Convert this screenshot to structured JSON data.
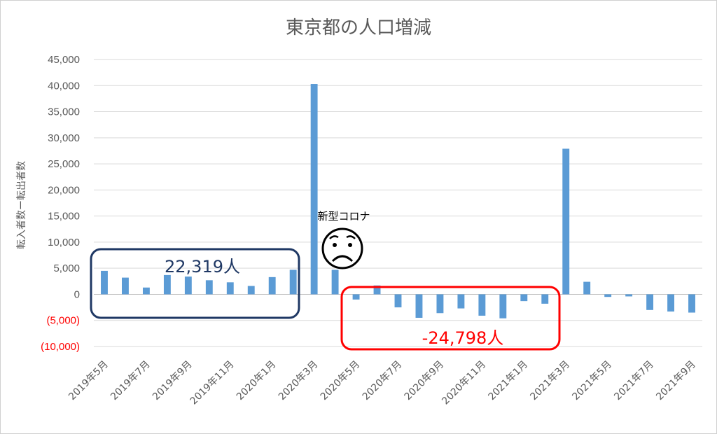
{
  "chart_data": {
    "type": "bar",
    "title": "東京都の人口増減",
    "ylabel": "転入者数ー転出者数",
    "xlabel": "",
    "ylim": [
      -10000,
      45000
    ],
    "yticks": [
      -10000,
      -5000,
      0,
      5000,
      10000,
      15000,
      20000,
      25000,
      30000,
      35000,
      40000,
      45000
    ],
    "ytick_labels": [
      "(10,000)",
      "(5,000)",
      "0",
      "5,000",
      "10,000",
      "15,000",
      "20,000",
      "25,000",
      "30,000",
      "35,000",
      "40,000",
      "45,000"
    ],
    "negative_tick_color": "#ff0000",
    "bar_color": "#5b9bd5",
    "grid": true,
    "categories": [
      "2019年5月",
      "2019年6月",
      "2019年7月",
      "2019年8月",
      "2019年9月",
      "2019年10月",
      "2019年11月",
      "2019年12月",
      "2020年1月",
      "2020年2月",
      "2020年3月",
      "2020年4月",
      "2020年5月",
      "2020年6月",
      "2020年7月",
      "2020年8月",
      "2020年9月",
      "2020年10月",
      "2020年11月",
      "2020年12月",
      "2021年1月",
      "2021年2月",
      "2021年3月",
      "2021年4月",
      "2021年5月",
      "2021年6月",
      "2021年7月",
      "2021年8月",
      "2021年9月"
    ],
    "tick_labels_shown": [
      "2019年5月",
      "2019年7月",
      "2019年9月",
      "2019年11月",
      "2020年1月",
      "2020年3月",
      "2020年5月",
      "2020年7月",
      "2020年9月",
      "2020年11月",
      "2021年1月",
      "2021年3月",
      "2021年5月",
      "2021年7月",
      "2021年9月"
    ],
    "values": [
      4500,
      3200,
      1300,
      3700,
      3400,
      2700,
      2300,
      1600,
      3300,
      4700,
      40300,
      4700,
      -1000,
      1700,
      -2500,
      -4500,
      -3600,
      -2700,
      -4100,
      -4600,
      -1300,
      -1800,
      27900,
      2400,
      -500,
      -400,
      -3000,
      -3300,
      -3500
    ],
    "annotations": [
      {
        "text": "22,319人",
        "color": "#1f3864"
      },
      {
        "text": "-24,798人",
        "color": "#ff0000"
      },
      {
        "text": "新型コロナ",
        "color": "#000000"
      }
    ]
  },
  "icons": {
    "worried_face": "worried-face-icon"
  }
}
